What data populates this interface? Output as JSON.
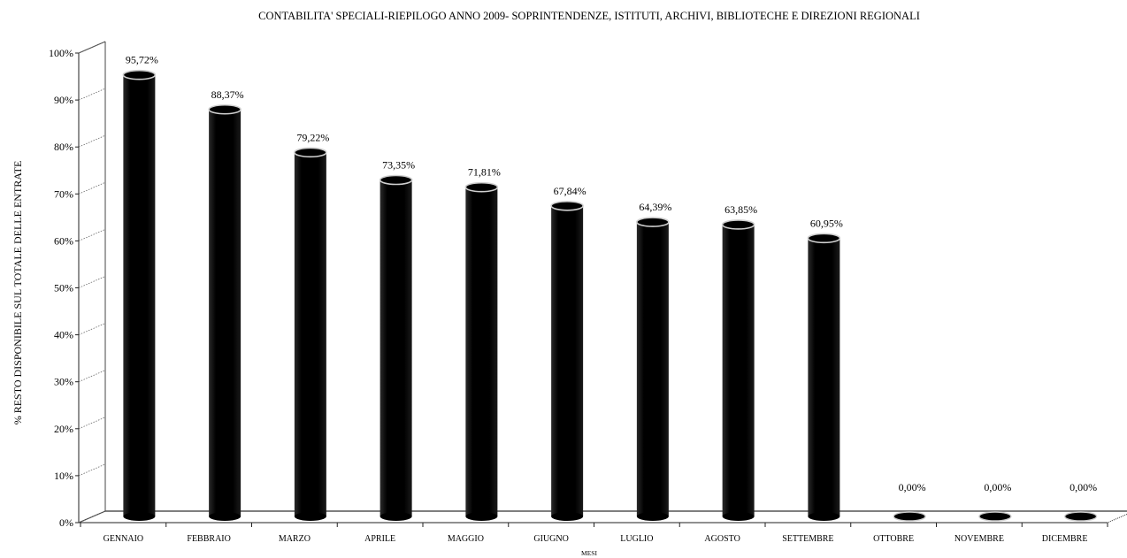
{
  "chart_data": {
    "type": "bar",
    "title": "CONTABILITA' SPECIALI-RIEPILOGO ANNO 2009- SOPRINTENDENZE, ISTITUTI, ARCHIVI, BIBLIOTECHE E DIREZIONI REGIONALI",
    "xlabel": "MESI",
    "ylabel": "% RESTO DISPONIBILE SUL TOTALE DELLE ENTRATE",
    "categories": [
      "GENNAIO",
      "FEBBRAIO",
      "MARZO",
      "APRILE",
      "MAGGIO",
      "GIUGNO",
      "LUGLIO",
      "AGOSTO",
      "SETTEMBRE",
      "OTTOBRE",
      "NOVEMBRE",
      "DICEMBRE"
    ],
    "values": [
      95.72,
      88.37,
      79.22,
      73.35,
      71.81,
      67.84,
      64.39,
      63.85,
      60.95,
      0.0,
      0.0,
      0.0
    ],
    "data_labels": [
      "95,72%",
      "88,37%",
      "79,22%",
      "73,35%",
      "71,81%",
      "67,84%",
      "64,39%",
      "63,85%",
      "60,95%",
      "0,00%",
      "0,00%",
      "0,00%"
    ],
    "yticks": [
      "0%",
      "10%",
      "20%",
      "30%",
      "40%",
      "50%",
      "60%",
      "70%",
      "80%",
      "90%",
      "100%"
    ],
    "ylim": [
      0,
      100
    ],
    "style": "3d-cylinder",
    "bar_color": "#000000",
    "grid": false,
    "legend": "none"
  }
}
